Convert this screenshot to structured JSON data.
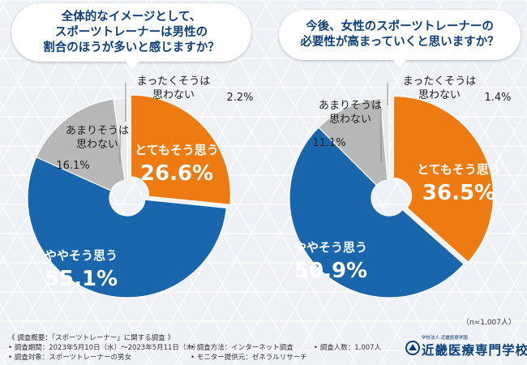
{
  "questions": [
    {
      "lines": [
        "全体的なイメージとして、",
        "スポーツトレーナーは男性の",
        "割合のほうが多いと感じますか？"
      ]
    },
    {
      "lines": [
        "今後、女性のスポーツトレーナーの",
        "必要性が高まっていくと思いますか？"
      ]
    }
  ],
  "sample_size": "（n=1,007人）",
  "footer": {
    "title": "《 調査概要：「スポーツトレーナー」に関する調査 》",
    "period": "• 調査期間：2023年5月10日（水）～2023年5月11日（木）",
    "target": "• 調査対象：スポーツトレーナーの男女",
    "method": "• 調査方法：インターネット調査",
    "provider": "• モニター提供元：ゼネラルリサーチ",
    "count": "• 調査人数：1,007人"
  },
  "logo": {
    "sub": "学校法人 近畿医療学園",
    "name": "近畿医療専門学校",
    "color": "#0d3f7a"
  },
  "colors": {
    "orange": "#ee7a12",
    "blue": "#1a66ad",
    "gray": "#b7b7b7",
    "light": "#e9e9e9",
    "title": "#0d3f7a"
  },
  "chart_data": [
    {
      "type": "pie",
      "title": "全体的なイメージとして、スポーツトレーナーは男性の割合のほうが多いと感じますか？",
      "categories": [
        "とてもそう思う",
        "ややそう思う",
        "あまりそうは思わない",
        "まったくそうは思わない"
      ],
      "values": [
        26.6,
        55.1,
        16.1,
        2.2
      ],
      "labels": [
        "26.6%",
        "55.1%",
        "16.1%",
        "2.2%"
      ]
    },
    {
      "type": "pie",
      "title": "今後、女性のスポーツトレーナーの必要性が高まっていくと思いますか？",
      "categories": [
        "とてもそう思う",
        "ややそう思う",
        "あまりそうは思わない",
        "まったくそうは思わない"
      ],
      "values": [
        36.5,
        50.9,
        11.1,
        1.4
      ],
      "labels": [
        "36.5%",
        "50.9%",
        "11.1%",
        "1.4%"
      ]
    }
  ]
}
